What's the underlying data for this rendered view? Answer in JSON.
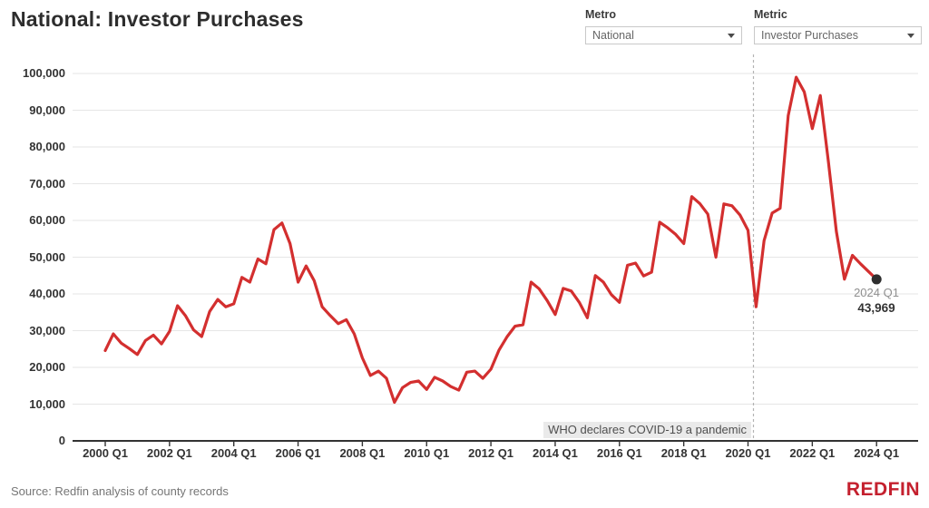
{
  "header": {
    "title": "National: Investor Purchases",
    "metro_filter": {
      "label": "Metro",
      "value": "National"
    },
    "metric_filter": {
      "label": "Metric",
      "value": "Investor Purchases"
    }
  },
  "chart_data": {
    "type": "line",
    "title": "National: Investor Purchases",
    "x_unit": "quarter",
    "x_start": "2000 Q1",
    "x_end": "2024 Q1",
    "ylim": [
      0,
      100000
    ],
    "grid": "horizontal",
    "legend": "none",
    "line_color": "#d32f2f",
    "y_ticks": [
      {
        "value": 0,
        "label": "0"
      },
      {
        "value": 10000,
        "label": "10,000"
      },
      {
        "value": 20000,
        "label": "20,000"
      },
      {
        "value": 30000,
        "label": "30,000"
      },
      {
        "value": 40000,
        "label": "40,000"
      },
      {
        "value": 50000,
        "label": "50,000"
      },
      {
        "value": 60000,
        "label": "60,000"
      },
      {
        "value": 70000,
        "label": "70,000"
      },
      {
        "value": 80000,
        "label": "80,000"
      },
      {
        "value": 90000,
        "label": "90,000"
      },
      {
        "value": 100000,
        "label": "100,000"
      }
    ],
    "x_ticks": [
      {
        "index": 0,
        "label": "2000 Q1"
      },
      {
        "index": 8,
        "label": "2002 Q1"
      },
      {
        "index": 16,
        "label": "2004 Q1"
      },
      {
        "index": 24,
        "label": "2006 Q1"
      },
      {
        "index": 32,
        "label": "2008 Q1"
      },
      {
        "index": 40,
        "label": "2010 Q1"
      },
      {
        "index": 48,
        "label": "2012 Q1"
      },
      {
        "index": 56,
        "label": "2014 Q1"
      },
      {
        "index": 64,
        "label": "2016 Q1"
      },
      {
        "index": 72,
        "label": "2018 Q1"
      },
      {
        "index": 80,
        "label": "2020 Q1"
      },
      {
        "index": 88,
        "label": "2022 Q1"
      },
      {
        "index": 96,
        "label": "2024 Q1"
      }
    ],
    "values": [
      24600,
      29100,
      26600,
      25100,
      23500,
      27300,
      28800,
      26400,
      29800,
      36800,
      34000,
      30200,
      28400,
      35200,
      38500,
      36500,
      37300,
      44500,
      43200,
      49500,
      48200,
      57500,
      59300,
      53700,
      43200,
      47600,
      43600,
      36500,
      34100,
      31900,
      33000,
      29100,
      22600,
      17800,
      19000,
      17000,
      10500,
      14500,
      15900,
      16300,
      14000,
      17300,
      16300,
      14800,
      13800,
      18700,
      19000,
      17000,
      19500,
      24700,
      28300,
      31200,
      31600,
      43200,
      41400,
      38200,
      34400,
      41500,
      40800,
      37700,
      33500,
      45000,
      43200,
      39800,
      37700,
      47800,
      48400,
      44900,
      45900,
      59500,
      58000,
      56200,
      53700,
      66500,
      64600,
      61700,
      50000,
      64500,
      64000,
      61500,
      57300,
      36500,
      54500,
      62000,
      63300,
      88500,
      99000,
      95000,
      85000,
      94000,
      76000,
      57000,
      44000,
      50500,
      48200,
      46100,
      43969
    ],
    "annotations": {
      "event_line": {
        "text": "WHO declares COVID-19 a pandemic",
        "position": "2020 Q1"
      },
      "last_point": {
        "label": "2024 Q1",
        "value": "43,969"
      }
    }
  },
  "footer": {
    "source": "Source: Redfin analysis of county records",
    "logo": "REDFIN"
  }
}
